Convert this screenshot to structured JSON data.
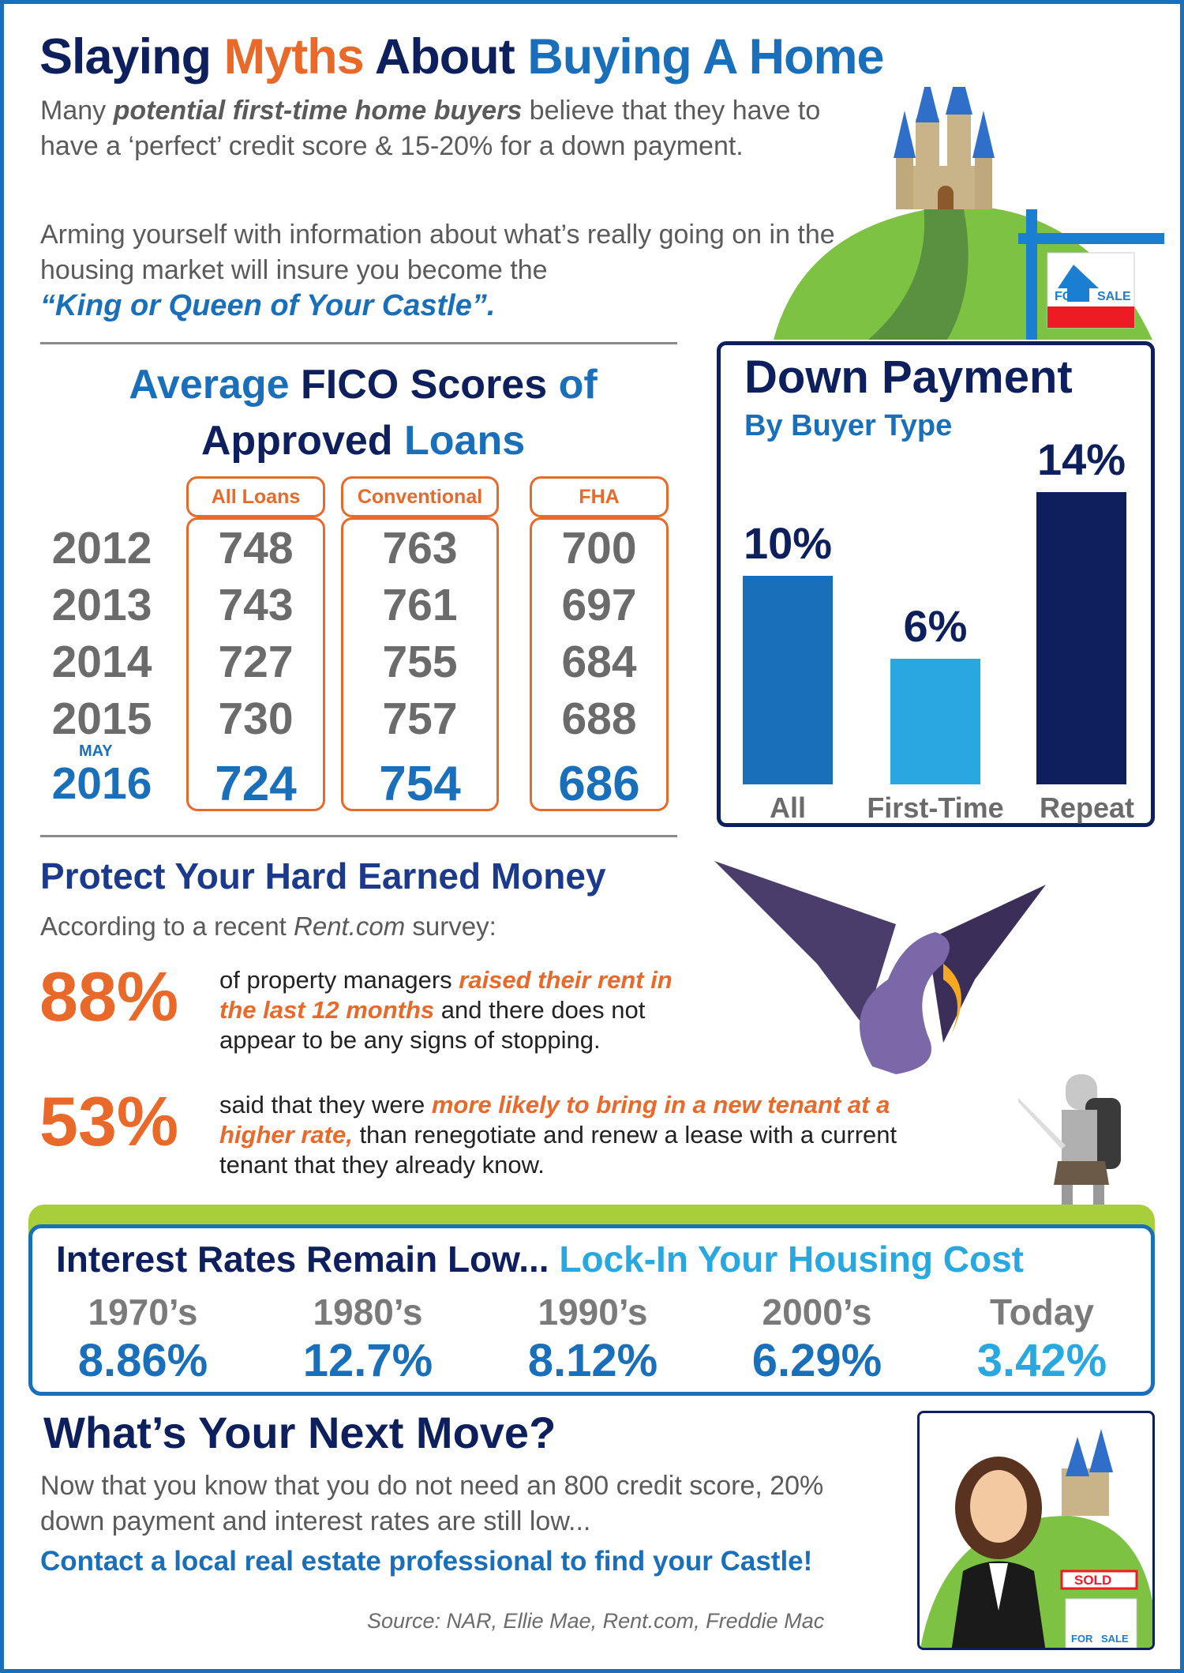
{
  "header": {
    "title_parts": [
      "Slaying",
      "Myths",
      "About",
      "Buying A Home"
    ],
    "intro1_pre": "Many ",
    "intro1_em": "potential first-time home buyers",
    "intro1_post": " believe that they have to have a ‘perfect’ credit score & 15-20% for a down payment.",
    "intro2": "Arming yourself with information about what’s really going on in the housing market will insure you become the",
    "intro2_quote": "“King or Queen of Your Castle”."
  },
  "sign": {
    "for": "FOR",
    "sale": "SALE",
    "sold": "SOLD"
  },
  "fico": {
    "title_parts": [
      "Average",
      "FICO Scores",
      "of",
      "Approved",
      "Loans"
    ],
    "columns": [
      "All Loans",
      "Conventional",
      "FHA"
    ],
    "years": [
      "2012",
      "2013",
      "2014",
      "2015",
      "2016"
    ],
    "may_label": "MAY",
    "rows": [
      [
        "748",
        "763",
        "700"
      ],
      [
        "743",
        "761",
        "697"
      ],
      [
        "727",
        "755",
        "684"
      ],
      [
        "730",
        "757",
        "688"
      ],
      [
        "724",
        "754",
        "686"
      ]
    ]
  },
  "chart_data": {
    "type": "bar",
    "title": "Down Payment",
    "subtitle": "By Buyer Type",
    "categories": [
      "All",
      "First-Time",
      "Repeat"
    ],
    "values": [
      10,
      6,
      14
    ],
    "labels": [
      "10%",
      "6%",
      "14%"
    ],
    "colors": [
      "#1a6fba",
      "#29a8e0",
      "#0d1f5c"
    ],
    "ylim": [
      0,
      14
    ]
  },
  "protect": {
    "title": "Protect Your Hard Earned Money",
    "intro_pre": "According to a recent ",
    "intro_em": "Rent.com",
    "intro_post": " survey:",
    "stat1": {
      "value": "88%",
      "pre": "of property managers ",
      "em": "raised their rent in the last 12 months",
      "post": " and there does not appear to be any signs of stopping."
    },
    "stat2": {
      "value": "53%",
      "pre": "said that they were ",
      "em": "more likely to bring in a new tenant at a higher rate,",
      "post": " than renegotiate and renew a lease with a current tenant that they already know."
    }
  },
  "rates": {
    "title_a": "Interest Rates Remain Low...",
    "title_b": "Lock-In Your Housing Cost",
    "items": [
      {
        "period": "1970’s",
        "rate": "8.86%"
      },
      {
        "period": "1980’s",
        "rate": "12.7%"
      },
      {
        "period": "1990’s",
        "rate": "8.12%"
      },
      {
        "period": "2000’s",
        "rate": "6.29%"
      },
      {
        "period": "Today",
        "rate": "3.42%"
      }
    ]
  },
  "next": {
    "title": "What’s Your Next Move?",
    "body": "Now that you know that you do not need an 800 credit score, 20% down payment and interest rates are still low...",
    "cta": "Contact a local real estate professional to find your Castle!",
    "source": "Source: NAR, Ellie Mae, Rent.com, Freddie Mac"
  }
}
